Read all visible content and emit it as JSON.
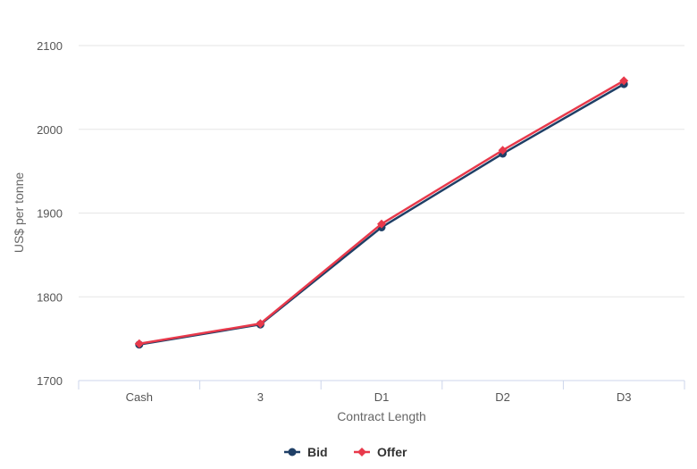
{
  "chart_data": {
    "type": "line",
    "categories": [
      "Cash",
      "3",
      "D1",
      "D2",
      "D3"
    ],
    "series": [
      {
        "name": "Bid",
        "color": "#1f3f66",
        "marker": "circle",
        "values": [
          1743,
          1767,
          1883,
          1971,
          2054
        ]
      },
      {
        "name": "Offer",
        "color": "#e8394b",
        "marker": "diamond",
        "values": [
          1744,
          1768,
          1887,
          1975,
          2058
        ]
      }
    ],
    "title": "",
    "xlabel": "Contract Length",
    "ylabel": "US$ per tonne",
    "ylim": [
      1700,
      2100
    ],
    "yticks": [
      1700,
      1800,
      1900,
      2000,
      2100
    ],
    "grid": true,
    "legend_position": "bottom-center"
  }
}
